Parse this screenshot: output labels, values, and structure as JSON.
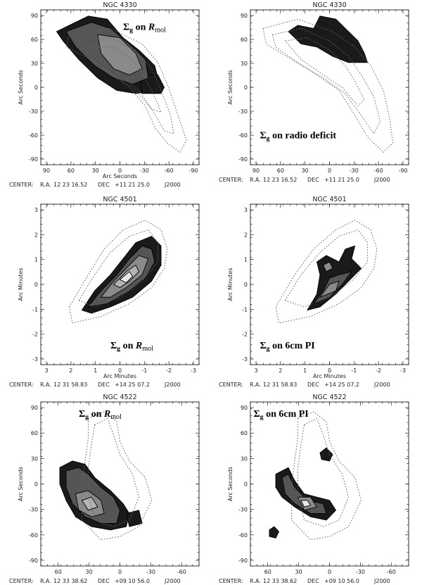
{
  "panels": [
    {
      "title": "NGC 4330",
      "xlabel": "Arc Seconds",
      "ylabel": "Arc Seconds",
      "xticks": [
        "90",
        "60",
        "30",
        "0",
        "-30",
        "-60",
        "-90"
      ],
      "yticks": [
        "90",
        "60",
        "30",
        "0",
        "-30",
        "-60",
        "-90"
      ],
      "annotation": {
        "sigma": "Σ",
        "sub_g": "g",
        "on": " on ",
        "target": "R",
        "target_sub": "mol",
        "italic": true
      },
      "center": {
        "label": "CENTER:",
        "ra_label": "R.A.",
        "ra": "12 23 16.52",
        "dec_label": "DEC",
        "dec": "+11 21 25.0",
        "epoch": "J2000"
      }
    },
    {
      "title": "NGC 4330",
      "xlabel": "",
      "ylabel": "Arc Seconds",
      "xticks": [
        "90",
        "60",
        "30",
        "0",
        "-30",
        "-60",
        "-90"
      ],
      "yticks": [
        "90",
        "60",
        "30",
        "0",
        "-30",
        "-60",
        "-90"
      ],
      "annotation": {
        "sigma": "Σ",
        "sub_g": "g",
        "on": " on ",
        "target": "radio deficit",
        "target_sub": "",
        "italic": false
      },
      "center": {
        "label": "CENTER:",
        "ra_label": "R.A.",
        "ra": "12 23 16.52",
        "dec_label": "DEC",
        "dec": "+11 21 25.0",
        "epoch": "J2000"
      }
    },
    {
      "title": "NGC 4501",
      "xlabel": "Arc Minutes",
      "ylabel": "Arc Minutes",
      "xticks": [
        "3",
        "2",
        "1",
        "0",
        "-1",
        "-2",
        "-3"
      ],
      "yticks": [
        "3",
        "2",
        "1",
        "0",
        "-1",
        "-2",
        "-3"
      ],
      "annotation": {
        "sigma": "Σ",
        "sub_g": "g",
        "on": " on ",
        "target": "R",
        "target_sub": "mol",
        "italic": true
      },
      "center": {
        "label": "CENTER:",
        "ra_label": "R.A.",
        "ra": "12 31 58.83",
        "dec_label": "DEC",
        "dec": "+14 25 07.2",
        "epoch": "J2000"
      }
    },
    {
      "title": "NGC 4501",
      "xlabel": "Arc Minutes",
      "ylabel": "Arc Minutes",
      "xticks": [
        "3",
        "2",
        "1",
        "0",
        "-1",
        "-2",
        "-3"
      ],
      "yticks": [
        "3",
        "2",
        "1",
        "0",
        "-1",
        "-2",
        "-3"
      ],
      "annotation": {
        "sigma": "Σ",
        "sub_g": "g",
        "on": " on ",
        "target": "6cm PI",
        "target_sub": "",
        "italic": false
      },
      "center": {
        "label": "CENTER:",
        "ra_label": "R.A.",
        "ra": "12 31 58.83",
        "dec_label": "DEC",
        "dec": "+14 25 07.2",
        "epoch": "J2000"
      }
    },
    {
      "title": "NGC 4522",
      "xlabel": "",
      "ylabel": "Arc Seconds",
      "xticks": [
        "60",
        "30",
        "0",
        "-30",
        "-60"
      ],
      "yticks": [
        "90",
        "60",
        "30",
        "0",
        "-30",
        "-60",
        "-90"
      ],
      "annotation": {
        "sigma": "Σ",
        "sub_g": "g",
        "on": " on ",
        "target": "R",
        "target_sub": "mol",
        "italic": true
      },
      "center": {
        "label": "CENTER:",
        "ra_label": "R.A.",
        "ra": "12 33 38.62",
        "dec_label": "DEC",
        "dec": "+09 10 56.0",
        "epoch": "J2000"
      }
    },
    {
      "title": "NGC 4522",
      "xlabel": "",
      "ylabel": "Arc Seconds",
      "xticks": [
        "60",
        "30",
        "0",
        "-30",
        "-60"
      ],
      "yticks": [
        "90",
        "60",
        "30",
        "0",
        "-30",
        "-60",
        "-90"
      ],
      "annotation": {
        "sigma": "Σ",
        "sub_g": "g",
        "on": " on ",
        "target": "6cm PI",
        "target_sub": "",
        "italic": false
      },
      "center": {
        "label": "CENTER:",
        "ra_label": "R.A.",
        "ra": "12 33 38.62",
        "dec_label": "DEC",
        "dec": "+09 10 56.0",
        "epoch": "J2000"
      }
    }
  ],
  "colors": {
    "fill_dark": "#1a1a1a",
    "fill_mid": "#555555",
    "fill_light": "#8a8a8a",
    "fill_lighter": "#b4b4b4",
    "fill_white": "#e8e8e8",
    "contour": "#666666"
  }
}
